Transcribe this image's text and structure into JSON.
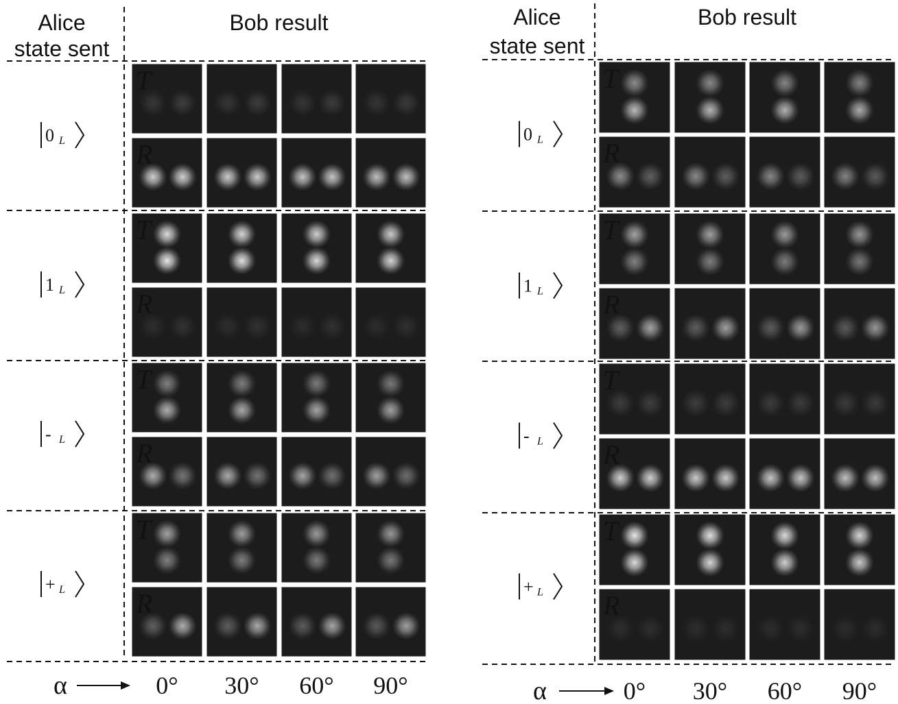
{
  "panels": [
    {
      "header": {
        "alice": [
          "Alice",
          "state sent"
        ],
        "bob": "Bob result"
      },
      "states": [
        {
          "symbol": "0",
          "subscript": "L"
        },
        {
          "symbol": "1",
          "subscript": "L"
        },
        {
          "symbol": "-",
          "subscript": "L"
        },
        {
          "symbol": "+",
          "subscript": "L"
        }
      ],
      "cell_labels": [
        "T",
        "R"
      ],
      "alpha_label": "α",
      "angles": [
        "0°",
        "30°",
        "60°",
        "90°"
      ]
    },
    {
      "header": {
        "alice": [
          "Alice",
          "state sent"
        ],
        "bob": "Bob result"
      },
      "states": [
        {
          "symbol": "0",
          "subscript": "L"
        },
        {
          "symbol": "1",
          "subscript": "L"
        },
        {
          "symbol": "-",
          "subscript": "L"
        },
        {
          "symbol": "+",
          "subscript": "L"
        }
      ],
      "cell_labels": [
        "T",
        "R"
      ],
      "alpha_label": "α",
      "angles": [
        "0°",
        "30°",
        "60°",
        "90°"
      ]
    }
  ]
}
